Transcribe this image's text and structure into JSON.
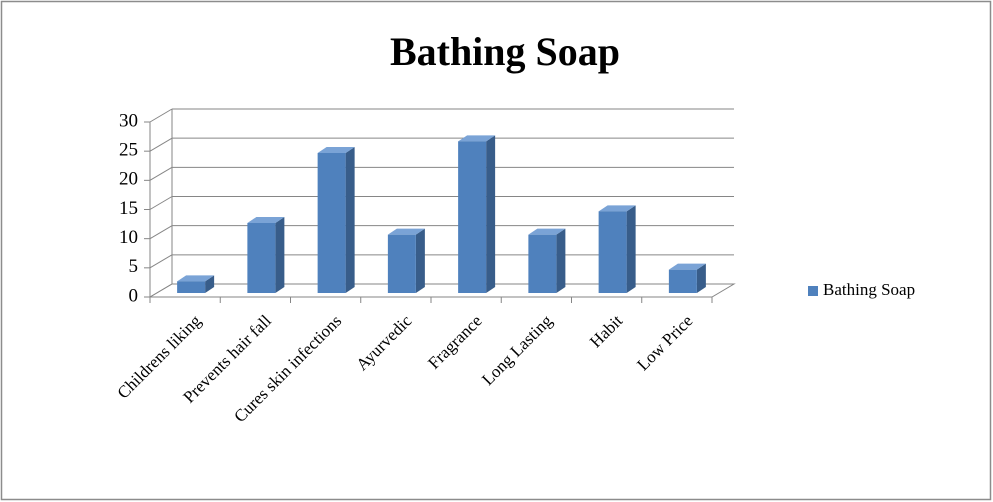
{
  "chart_data": {
    "type": "bar3d",
    "title": "Bathing Soap",
    "categories": [
      "Childrens liking",
      "Prevents hair fall",
      "Cures skin infections",
      "Ayurvedic",
      "Fragrance",
      "Long Lasting",
      "Habit",
      "Low  Price"
    ],
    "series": [
      {
        "name": "Bathing Soap",
        "color": "#4f81bd",
        "values": [
          2,
          12,
          24,
          10,
          26,
          10,
          14,
          4
        ]
      }
    ],
    "ylim": [
      0,
      30
    ],
    "yticks": [
      0,
      5,
      10,
      15,
      20,
      25,
      30
    ],
    "grid": true,
    "legend": "right"
  }
}
